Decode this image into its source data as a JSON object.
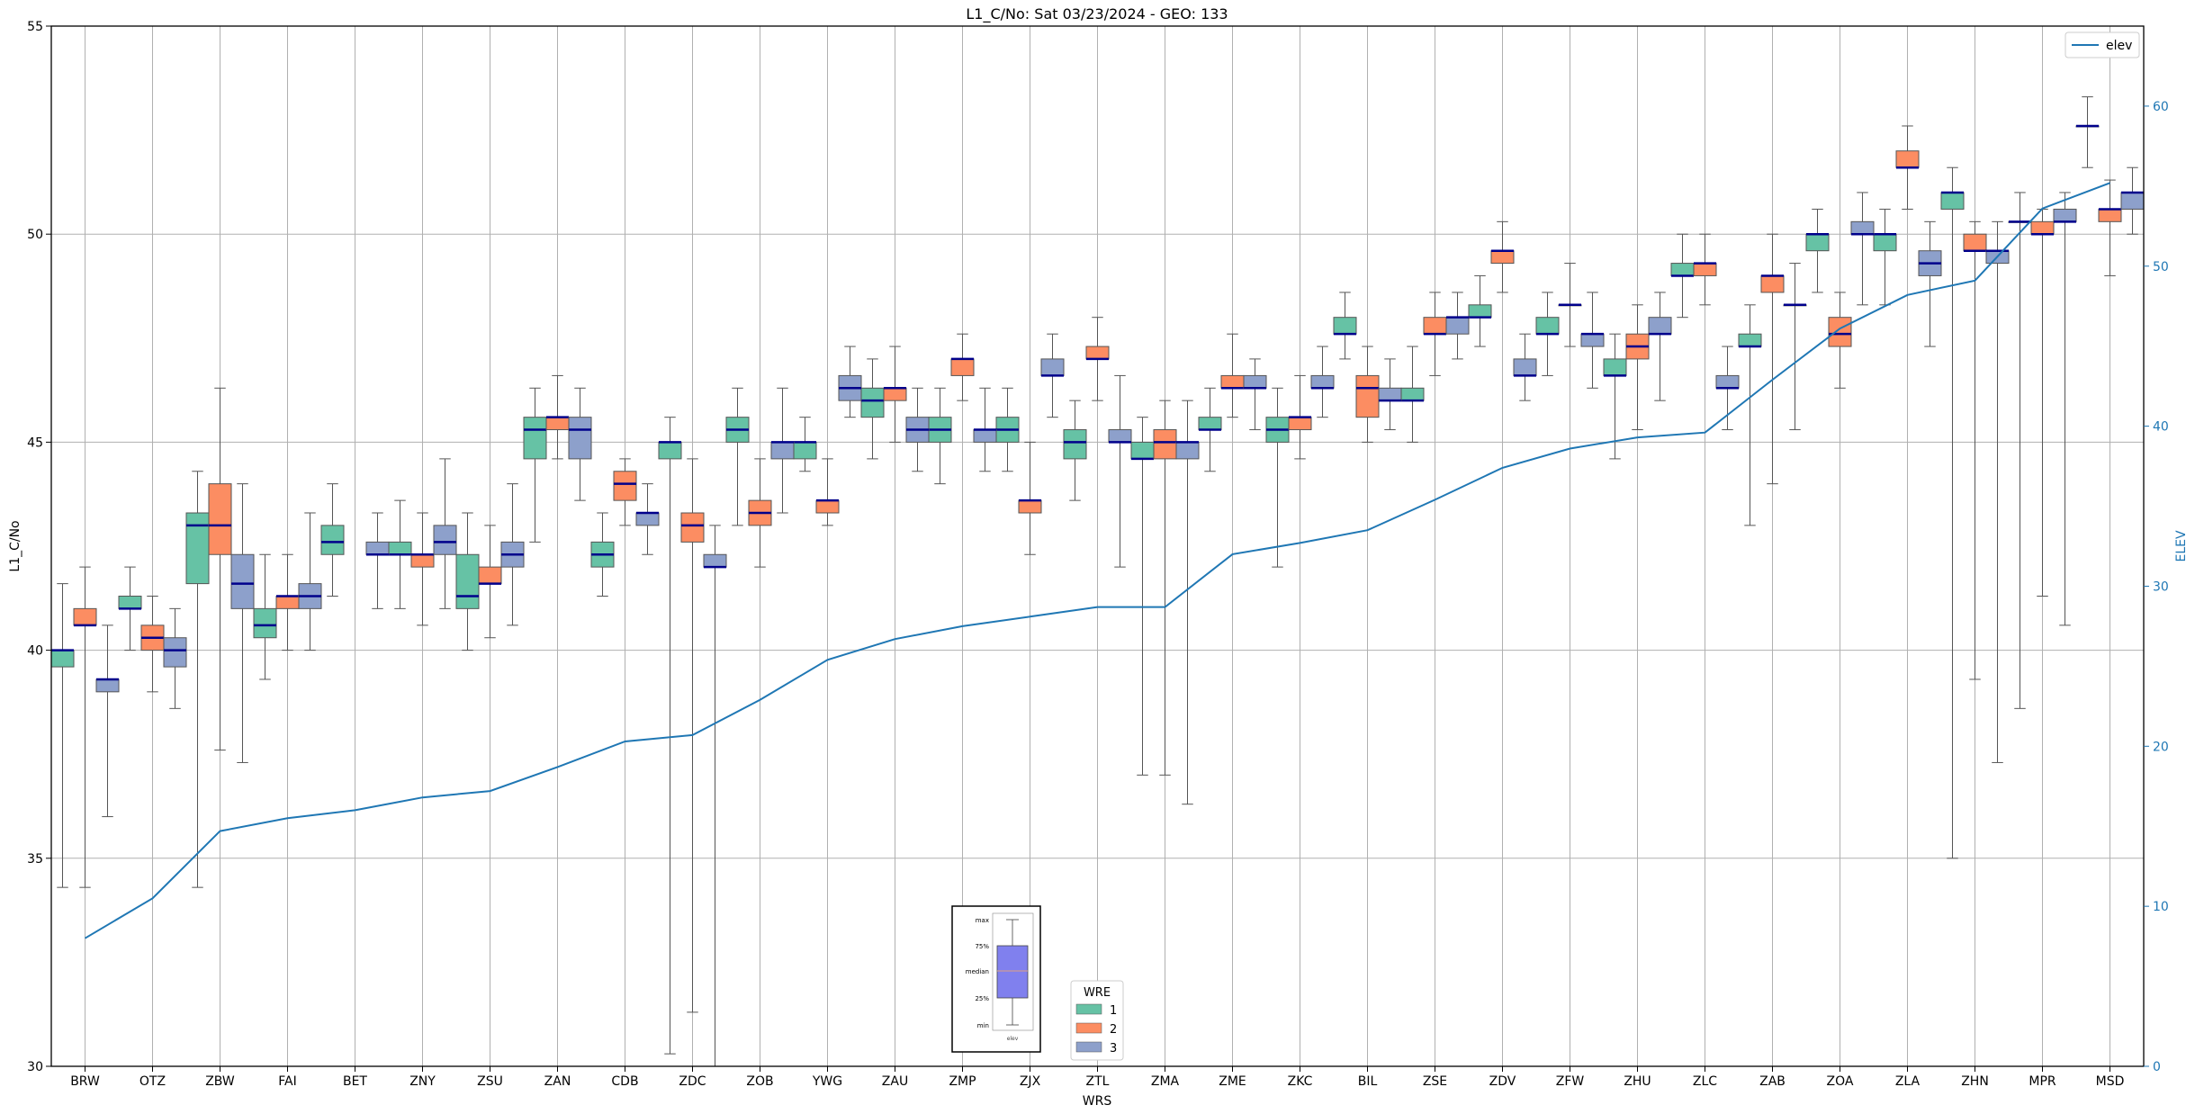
{
  "chart_data": {
    "type": "boxplot",
    "title": "L1_C/No: Sat 03/23/2024 - GEO: 133",
    "xlabel": "WRS",
    "ylabel": "L1_C/No",
    "ylabel_right": "ELEV",
    "ylim": [
      30,
      55
    ],
    "ylim_right": [
      0,
      65
    ],
    "yticks": [
      30,
      35,
      40,
      45,
      50,
      55
    ],
    "yticks_right": [
      0,
      10,
      20,
      30,
      40,
      50,
      60
    ],
    "grid": true,
    "categories": [
      "BRW",
      "OTZ",
      "ZBW",
      "FAI",
      "BET",
      "ZNY",
      "ZSU",
      "ZAN",
      "CDB",
      "ZDC",
      "ZOB",
      "YWG",
      "ZAU",
      "ZMP",
      "ZJX",
      "ZTL",
      "ZMA",
      "ZME",
      "ZKC",
      "BIL",
      "ZSE",
      "ZDV",
      "ZFW",
      "ZHU",
      "ZLC",
      "ZAB",
      "ZOA",
      "ZLA",
      "ZHN",
      "MPR",
      "MSD"
    ],
    "legend_title": "WRE",
    "legend_position": "bottom-center",
    "series": [
      {
        "name": "1",
        "color": "#66c2a5",
        "boxes": [
          {
            "cat": "BRW",
            "min": 34.3,
            "q1": 39.6,
            "med": 40.0,
            "q3": 40.0,
            "max": 41.6
          },
          {
            "cat": "OTZ",
            "min": 40.0,
            "q1": 41.0,
            "med": 41.0,
            "q3": 41.3,
            "max": 42.0
          },
          {
            "cat": "ZBW",
            "min": 34.3,
            "q1": 41.6,
            "med": 43.0,
            "q3": 43.3,
            "max": 44.3
          },
          {
            "cat": "FAI",
            "min": 39.3,
            "q1": 40.3,
            "med": 40.6,
            "q3": 41.0,
            "max": 42.3
          },
          {
            "cat": "BET",
            "min": 41.3,
            "q1": 42.3,
            "med": 42.6,
            "q3": 43.0,
            "max": 44.0
          },
          {
            "cat": "ZNY",
            "min": 41.0,
            "q1": 42.3,
            "med": 42.3,
            "q3": 42.6,
            "max": 43.6
          },
          {
            "cat": "ZSU",
            "min": 40.0,
            "q1": 41.0,
            "med": 41.3,
            "q3": 42.3,
            "max": 43.3
          },
          {
            "cat": "ZAN",
            "min": 42.6,
            "q1": 44.6,
            "med": 45.3,
            "q3": 45.6,
            "max": 46.3
          },
          {
            "cat": "CDB",
            "min": 41.3,
            "q1": 42.0,
            "med": 42.3,
            "q3": 42.6,
            "max": 43.3
          },
          {
            "cat": "ZDC",
            "min": 30.3,
            "q1": 44.6,
            "med": 45.0,
            "q3": 45.0,
            "max": 45.6
          },
          {
            "cat": "ZOB",
            "min": 43.0,
            "q1": 45.0,
            "med": 45.3,
            "q3": 45.6,
            "max": 46.3
          },
          {
            "cat": "YWG",
            "min": 44.3,
            "q1": 44.6,
            "med": 45.0,
            "q3": 45.0,
            "max": 45.6
          },
          {
            "cat": "ZAU",
            "min": 44.6,
            "q1": 45.6,
            "med": 46.0,
            "q3": 46.3,
            "max": 47.0
          },
          {
            "cat": "ZMP",
            "min": 44.0,
            "q1": 45.0,
            "med": 45.3,
            "q3": 45.6,
            "max": 46.3
          },
          {
            "cat": "ZJX",
            "min": 44.3,
            "q1": 45.0,
            "med": 45.3,
            "q3": 45.6,
            "max": 46.3
          },
          {
            "cat": "ZTL",
            "min": 43.6,
            "q1": 44.6,
            "med": 45.0,
            "q3": 45.3,
            "max": 46.0
          },
          {
            "cat": "ZMA",
            "min": 37.0,
            "q1": 44.6,
            "med": 44.6,
            "q3": 45.0,
            "max": 45.6
          },
          {
            "cat": "ZME",
            "min": 44.3,
            "q1": 45.3,
            "med": 45.3,
            "q3": 45.6,
            "max": 46.3
          },
          {
            "cat": "ZKC",
            "min": 42.0,
            "q1": 45.0,
            "med": 45.3,
            "q3": 45.6,
            "max": 46.3
          },
          {
            "cat": "BIL",
            "min": 47.0,
            "q1": 47.6,
            "med": 47.6,
            "q3": 48.0,
            "max": 48.6
          },
          {
            "cat": "ZSE",
            "min": 45.0,
            "q1": 46.0,
            "med": 46.0,
            "q3": 46.3,
            "max": 47.3
          },
          {
            "cat": "ZDV",
            "min": 47.3,
            "q1": 48.0,
            "med": 48.0,
            "q3": 48.3,
            "max": 49.0
          },
          {
            "cat": "ZFW",
            "min": 46.6,
            "q1": 47.6,
            "med": 47.6,
            "q3": 48.0,
            "max": 48.6
          },
          {
            "cat": "ZHU",
            "min": 44.6,
            "q1": 46.6,
            "med": 46.6,
            "q3": 47.0,
            "max": 47.6
          },
          {
            "cat": "ZLC",
            "min": 48.0,
            "q1": 49.0,
            "med": 49.0,
            "q3": 49.3,
            "max": 50.0
          },
          {
            "cat": "ZAB",
            "min": 43.0,
            "q1": 47.3,
            "med": 47.3,
            "q3": 47.6,
            "max": 48.3
          },
          {
            "cat": "ZOA",
            "min": 48.6,
            "q1": 49.6,
            "med": 50.0,
            "q3": 50.0,
            "max": 50.6
          },
          {
            "cat": "ZLA",
            "min": 48.3,
            "q1": 49.6,
            "med": 50.0,
            "q3": 50.0,
            "max": 50.6
          },
          {
            "cat": "ZHN",
            "min": 35.0,
            "q1": 50.6,
            "med": 51.0,
            "q3": 51.0,
            "max": 51.6
          },
          {
            "cat": "MPR",
            "min": 38.6,
            "q1": 50.3,
            "med": 50.3,
            "q3": 50.3,
            "max": 51.0
          },
          {
            "cat": "MSD",
            "min": 51.6,
            "q1": 52.6,
            "med": 52.6,
            "q3": 52.6,
            "max": 53.3
          }
        ]
      },
      {
        "name": "2",
        "color": "#fc8d62",
        "boxes": [
          {
            "cat": "BRW",
            "min": 34.3,
            "q1": 40.6,
            "med": 40.6,
            "q3": 41.0,
            "max": 42.0
          },
          {
            "cat": "OTZ",
            "min": 39.0,
            "q1": 40.0,
            "med": 40.3,
            "q3": 40.6,
            "max": 41.3
          },
          {
            "cat": "ZBW",
            "min": 37.6,
            "q1": 42.3,
            "med": 43.0,
            "q3": 44.0,
            "max": 46.3
          },
          {
            "cat": "FAI",
            "min": 40.0,
            "q1": 41.0,
            "med": 41.3,
            "q3": 41.3,
            "max": 42.3
          },
          {
            "cat": "ZNY",
            "min": 40.6,
            "q1": 42.0,
            "med": 42.3,
            "q3": 42.3,
            "max": 43.3
          },
          {
            "cat": "ZSU",
            "min": 40.3,
            "q1": 41.6,
            "med": 41.6,
            "q3": 42.0,
            "max": 43.0
          },
          {
            "cat": "ZAN",
            "min": 44.6,
            "q1": 45.3,
            "med": 45.6,
            "q3": 45.6,
            "max": 46.6
          },
          {
            "cat": "CDB",
            "min": 43.0,
            "q1": 43.6,
            "med": 44.0,
            "q3": 44.3,
            "max": 44.6
          },
          {
            "cat": "ZDC",
            "min": 31.3,
            "q1": 42.6,
            "med": 43.0,
            "q3": 43.3,
            "max": 44.6
          },
          {
            "cat": "ZOB",
            "min": 42.0,
            "q1": 43.0,
            "med": 43.3,
            "q3": 43.6,
            "max": 44.6
          },
          {
            "cat": "YWG",
            "min": 43.0,
            "q1": 43.3,
            "med": 43.6,
            "q3": 43.6,
            "max": 44.6
          },
          {
            "cat": "ZAU",
            "min": 45.0,
            "q1": 46.0,
            "med": 46.3,
            "q3": 46.3,
            "max": 47.3
          },
          {
            "cat": "ZMP",
            "min": 46.0,
            "q1": 46.6,
            "med": 47.0,
            "q3": 47.0,
            "max": 47.6
          },
          {
            "cat": "ZJX",
            "min": 42.3,
            "q1": 43.3,
            "med": 43.6,
            "q3": 43.6,
            "max": 45.0
          },
          {
            "cat": "ZTL",
            "min": 46.0,
            "q1": 47.0,
            "med": 47.0,
            "q3": 47.3,
            "max": 48.0
          },
          {
            "cat": "ZMA",
            "min": 37.0,
            "q1": 44.6,
            "med": 45.0,
            "q3": 45.3,
            "max": 46.0
          },
          {
            "cat": "ZME",
            "min": 45.6,
            "q1": 46.3,
            "med": 46.3,
            "q3": 46.6,
            "max": 47.6
          },
          {
            "cat": "ZKC",
            "min": 44.6,
            "q1": 45.3,
            "med": 45.6,
            "q3": 45.6,
            "max": 46.6
          },
          {
            "cat": "BIL",
            "min": 45.0,
            "q1": 45.6,
            "med": 46.3,
            "q3": 46.6,
            "max": 47.3
          },
          {
            "cat": "ZSE",
            "min": 46.6,
            "q1": 47.6,
            "med": 47.6,
            "q3": 48.0,
            "max": 48.6
          },
          {
            "cat": "ZDV",
            "min": 48.6,
            "q1": 49.3,
            "med": 49.6,
            "q3": 49.6,
            "max": 50.3
          },
          {
            "cat": "ZFW",
            "min": 47.3,
            "q1": 48.3,
            "med": 48.3,
            "q3": 48.3,
            "max": 49.3
          },
          {
            "cat": "ZHU",
            "min": 45.3,
            "q1": 47.0,
            "med": 47.3,
            "q3": 47.6,
            "max": 48.3
          },
          {
            "cat": "ZLC",
            "min": 48.3,
            "q1": 49.0,
            "med": 49.3,
            "q3": 49.3,
            "max": 50.0
          },
          {
            "cat": "ZAB",
            "min": 44.0,
            "q1": 48.6,
            "med": 49.0,
            "q3": 49.0,
            "max": 50.0
          },
          {
            "cat": "ZOA",
            "min": 46.3,
            "q1": 47.3,
            "med": 47.6,
            "q3": 48.0,
            "max": 48.6
          },
          {
            "cat": "ZLA",
            "min": 50.6,
            "q1": 51.6,
            "med": 51.6,
            "q3": 52.0,
            "max": 52.6
          },
          {
            "cat": "ZHN",
            "min": 39.3,
            "q1": 49.6,
            "med": 49.6,
            "q3": 50.0,
            "max": 50.3
          },
          {
            "cat": "MPR",
            "min": 41.3,
            "q1": 50.0,
            "med": 50.0,
            "q3": 50.3,
            "max": 50.6
          },
          {
            "cat": "MSD",
            "min": 49.0,
            "q1": 50.3,
            "med": 50.6,
            "q3": 50.6,
            "max": 51.3
          }
        ]
      },
      {
        "name": "3",
        "color": "#8da0cb",
        "boxes": [
          {
            "cat": "BRW",
            "min": 36.0,
            "q1": 39.0,
            "med": 39.3,
            "q3": 39.3,
            "max": 40.6
          },
          {
            "cat": "OTZ",
            "min": 38.6,
            "q1": 39.6,
            "med": 40.0,
            "q3": 40.3,
            "max": 41.0
          },
          {
            "cat": "ZBW",
            "min": 37.3,
            "q1": 41.0,
            "med": 41.6,
            "q3": 42.3,
            "max": 44.0
          },
          {
            "cat": "FAI",
            "min": 40.0,
            "q1": 41.0,
            "med": 41.3,
            "q3": 41.6,
            "max": 43.3
          },
          {
            "cat": "BET",
            "min": 41.0,
            "q1": 42.3,
            "med": 42.3,
            "q3": 42.6,
            "max": 43.3
          },
          {
            "cat": "ZNY",
            "min": 41.0,
            "q1": 42.3,
            "med": 42.6,
            "q3": 43.0,
            "max": 44.6
          },
          {
            "cat": "ZSU",
            "min": 40.6,
            "q1": 42.0,
            "med": 42.3,
            "q3": 42.6,
            "max": 44.0
          },
          {
            "cat": "ZAN",
            "min": 43.6,
            "q1": 44.6,
            "med": 45.3,
            "q3": 45.6,
            "max": 46.3
          },
          {
            "cat": "CDB",
            "min": 42.3,
            "q1": 43.0,
            "med": 43.3,
            "q3": 43.3,
            "max": 44.0
          },
          {
            "cat": "ZDC",
            "min": 30.0,
            "q1": 42.0,
            "med": 42.0,
            "q3": 42.3,
            "max": 43.0
          },
          {
            "cat": "ZOB",
            "min": 43.3,
            "q1": 44.6,
            "med": 45.0,
            "q3": 45.0,
            "max": 46.3
          },
          {
            "cat": "YWG",
            "min": 45.6,
            "q1": 46.0,
            "med": 46.3,
            "q3": 46.6,
            "max": 47.3
          },
          {
            "cat": "ZAU",
            "min": 44.3,
            "q1": 45.0,
            "med": 45.3,
            "q3": 45.6,
            "max": 46.3
          },
          {
            "cat": "ZMP",
            "min": 44.3,
            "q1": 45.0,
            "med": 45.3,
            "q3": 45.3,
            "max": 46.3
          },
          {
            "cat": "ZJX",
            "min": 45.6,
            "q1": 46.6,
            "med": 46.6,
            "q3": 47.0,
            "max": 47.6
          },
          {
            "cat": "ZTL",
            "min": 42.0,
            "q1": 45.0,
            "med": 45.0,
            "q3": 45.3,
            "max": 46.6
          },
          {
            "cat": "ZMA",
            "min": 36.3,
            "q1": 44.6,
            "med": 45.0,
            "q3": 45.0,
            "max": 46.0
          },
          {
            "cat": "ZME",
            "min": 45.3,
            "q1": 46.3,
            "med": 46.3,
            "q3": 46.6,
            "max": 47.0
          },
          {
            "cat": "ZKC",
            "min": 45.6,
            "q1": 46.3,
            "med": 46.3,
            "q3": 46.6,
            "max": 47.3
          },
          {
            "cat": "BIL",
            "min": 45.3,
            "q1": 46.0,
            "med": 46.0,
            "q3": 46.3,
            "max": 47.0
          },
          {
            "cat": "ZSE",
            "min": 47.0,
            "q1": 47.6,
            "med": 48.0,
            "q3": 48.0,
            "max": 48.6
          },
          {
            "cat": "ZDV",
            "min": 46.0,
            "q1": 46.6,
            "med": 46.6,
            "q3": 47.0,
            "max": 47.6
          },
          {
            "cat": "ZFW",
            "min": 46.3,
            "q1": 47.3,
            "med": 47.6,
            "q3": 47.6,
            "max": 48.6
          },
          {
            "cat": "ZHU",
            "min": 46.0,
            "q1": 47.6,
            "med": 47.6,
            "q3": 48.0,
            "max": 48.6
          },
          {
            "cat": "ZLC",
            "min": 45.3,
            "q1": 46.3,
            "med": 46.3,
            "q3": 46.6,
            "max": 47.3
          },
          {
            "cat": "ZAB",
            "min": 45.3,
            "q1": 48.3,
            "med": 48.3,
            "q3": 48.3,
            "max": 49.3
          },
          {
            "cat": "ZOA",
            "min": 48.3,
            "q1": 50.0,
            "med": 50.0,
            "q3": 50.3,
            "max": 51.0
          },
          {
            "cat": "ZLA",
            "min": 47.3,
            "q1": 49.0,
            "med": 49.3,
            "q3": 49.6,
            "max": 50.3
          },
          {
            "cat": "ZHN",
            "min": 37.3,
            "q1": 49.3,
            "med": 49.6,
            "q3": 49.6,
            "max": 50.3
          },
          {
            "cat": "MPR",
            "min": 40.6,
            "q1": 50.3,
            "med": 50.3,
            "q3": 50.6,
            "max": 51.0
          },
          {
            "cat": "MSD",
            "min": 50.0,
            "q1": 50.6,
            "med": 51.0,
            "q3": 51.0,
            "max": 51.6
          }
        ]
      }
    ],
    "elev_line": {
      "name": "elev",
      "color": "#1f77b4",
      "values": [
        8.0,
        10.5,
        14.7,
        15.5,
        16.0,
        16.8,
        17.2,
        18.7,
        20.3,
        20.7,
        22.9,
        25.4,
        26.7,
        27.5,
        28.1,
        28.7,
        28.7,
        32.0,
        32.7,
        33.5,
        35.4,
        37.4,
        38.6,
        39.3,
        39.6,
        42.9,
        46.1,
        48.2,
        49.1,
        53.6,
        55.2
      ]
    },
    "legend_box_keys": {
      "max": "max",
      "p75": "75%",
      "median": "median",
      "p25": "25%",
      "min": "min",
      "caption": "elev"
    }
  }
}
